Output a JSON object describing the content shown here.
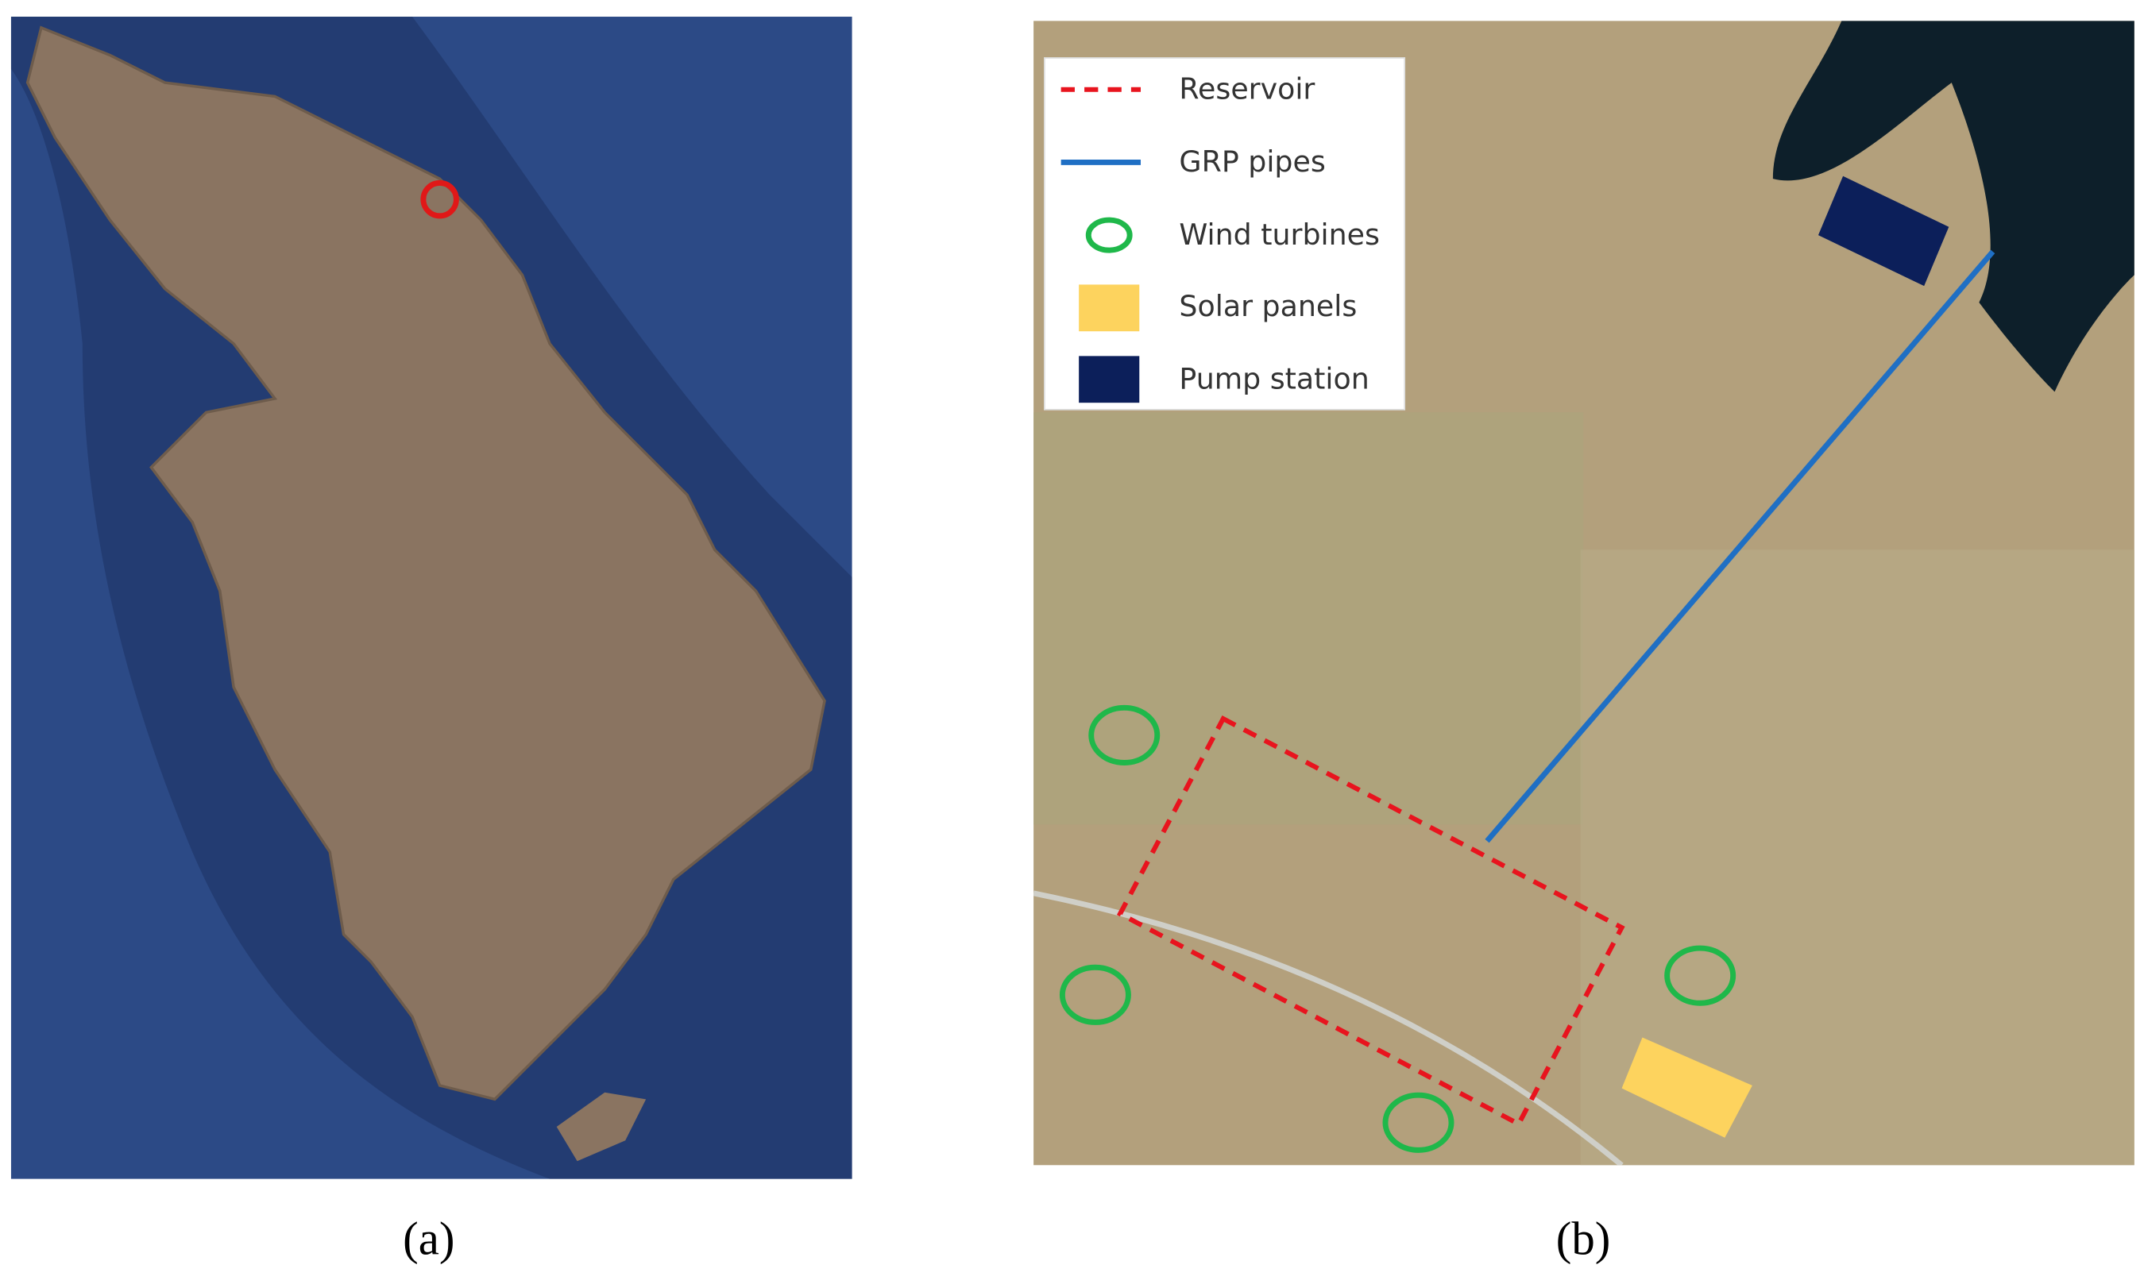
{
  "panels": [
    {
      "caption": "(a)"
    },
    {
      "caption": "(b)",
      "legend": [
        "Reservoir",
        "GRP pipes",
        "Wind turbines",
        "Solar panels",
        "Pump station"
      ]
    }
  ]
}
